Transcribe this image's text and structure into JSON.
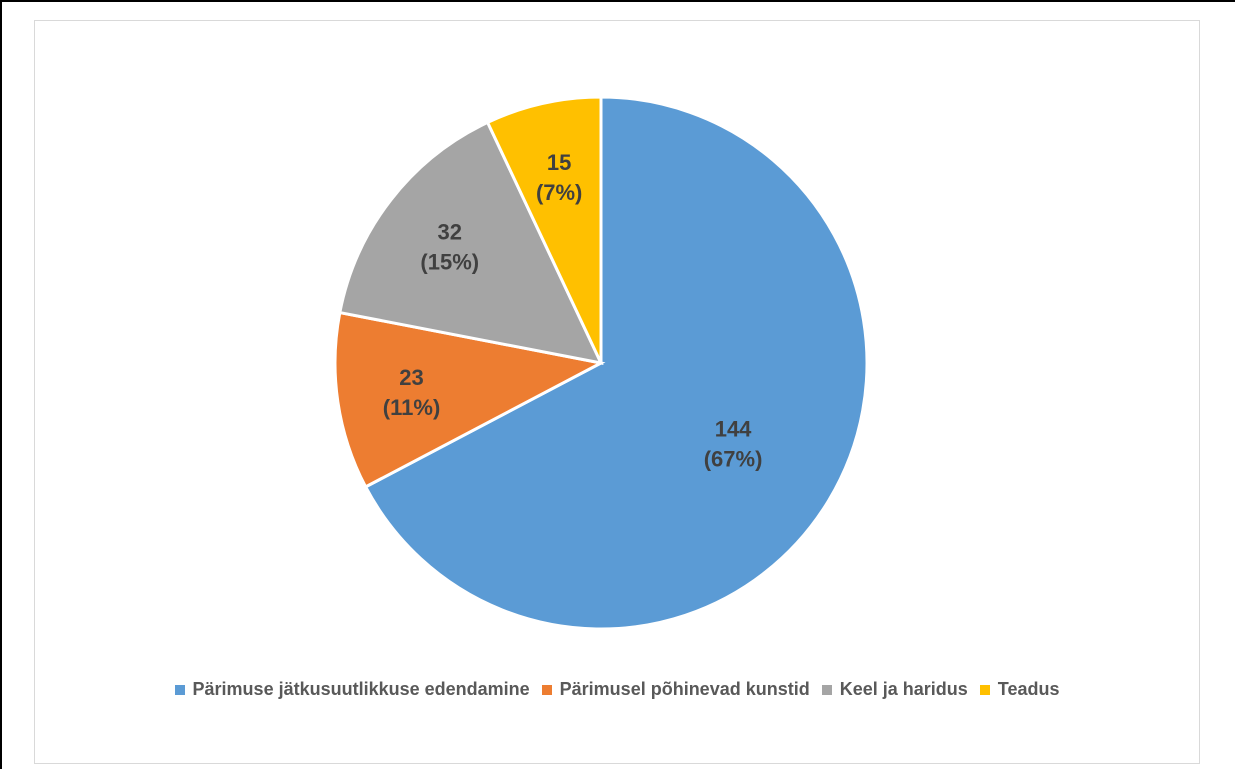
{
  "chart_data": {
    "type": "pie",
    "title": "",
    "categories": [
      "Pärimuse jätkusuutlikkuse edendamine",
      "Pärimusel põhinevad kunstid",
      "Keel ja haridus",
      "Teadus"
    ],
    "values": [
      144,
      23,
      32,
      15
    ],
    "percent_labels": [
      "(67%)",
      "(11%)",
      "(15%)",
      "(7%)"
    ],
    "value_labels": [
      "144",
      "23",
      "32",
      "15"
    ],
    "colors": [
      "#5b9bd5",
      "#ed7d31",
      "#a5a5a5",
      "#ffc000"
    ],
    "start": "12 o'clock",
    "direction": "clockwise",
    "legend_position": "bottom"
  }
}
